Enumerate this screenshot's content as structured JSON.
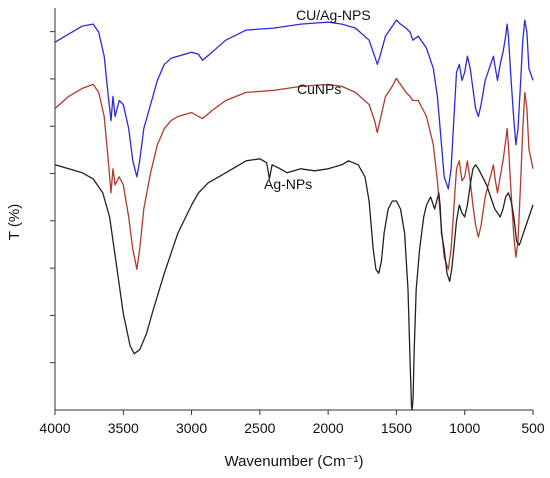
{
  "chart_data": {
    "type": "line",
    "xlabel": "Wavenumber (Cm⁻¹)",
    "ylabel": "T (%)",
    "xlim": [
      4000,
      500
    ],
    "x_reversed": true,
    "xticks": [
      4000,
      3500,
      3000,
      2500,
      2000,
      1500,
      1000,
      500
    ],
    "yticks_unlabeled": 8,
    "ylim": [
      0,
      100
    ],
    "grid": false,
    "series": [
      {
        "name": "CU/Ag-NPS",
        "color": "#2a2ad8",
        "points": [
          [
            4000,
            91.5
          ],
          [
            3900,
            93.5
          ],
          [
            3800,
            95.5
          ],
          [
            3720,
            96
          ],
          [
            3680,
            94
          ],
          [
            3640,
            88
          ],
          [
            3610,
            78
          ],
          [
            3590,
            72
          ],
          [
            3575,
            78
          ],
          [
            3560,
            73
          ],
          [
            3530,
            77
          ],
          [
            3500,
            76
          ],
          [
            3460,
            70
          ],
          [
            3430,
            62
          ],
          [
            3400,
            58
          ],
          [
            3380,
            62
          ],
          [
            3350,
            70
          ],
          [
            3300,
            76
          ],
          [
            3250,
            82
          ],
          [
            3200,
            86
          ],
          [
            3150,
            87.5
          ],
          [
            3100,
            88
          ],
          [
            3000,
            89
          ],
          [
            2950,
            88.5
          ],
          [
            2920,
            87
          ],
          [
            2850,
            89
          ],
          [
            2750,
            92
          ],
          [
            2600,
            94.5
          ],
          [
            2400,
            95
          ],
          [
            2200,
            96
          ],
          [
            2000,
            96.5
          ],
          [
            1900,
            96
          ],
          [
            1800,
            95
          ],
          [
            1700,
            92
          ],
          [
            1660,
            88
          ],
          [
            1640,
            86
          ],
          [
            1620,
            88
          ],
          [
            1580,
            93
          ],
          [
            1540,
            95
          ],
          [
            1500,
            97
          ],
          [
            1470,
            96
          ],
          [
            1430,
            95
          ],
          [
            1400,
            94
          ],
          [
            1380,
            92
          ],
          [
            1340,
            93
          ],
          [
            1280,
            90
          ],
          [
            1230,
            85
          ],
          [
            1200,
            78
          ],
          [
            1170,
            66
          ],
          [
            1150,
            58
          ],
          [
            1120,
            55
          ],
          [
            1100,
            60
          ],
          [
            1080,
            72
          ],
          [
            1060,
            84
          ],
          [
            1040,
            86
          ],
          [
            1020,
            82
          ],
          [
            1000,
            84
          ],
          [
            980,
            88
          ],
          [
            960,
            85
          ],
          [
            940,
            80
          ],
          [
            920,
            75
          ],
          [
            900,
            73
          ],
          [
            880,
            76
          ],
          [
            850,
            82
          ],
          [
            820,
            85
          ],
          [
            790,
            88
          ],
          [
            775,
            85
          ],
          [
            760,
            82
          ],
          [
            740,
            86
          ],
          [
            720,
            89
          ],
          [
            700,
            93
          ],
          [
            690,
            96
          ],
          [
            680,
            93
          ],
          [
            660,
            82
          ],
          [
            640,
            72
          ],
          [
            625,
            66
          ],
          [
            610,
            70
          ],
          [
            590,
            82
          ],
          [
            575,
            92
          ],
          [
            560,
            97
          ],
          [
            545,
            94
          ],
          [
            530,
            85
          ],
          [
            500,
            82
          ]
        ]
      },
      {
        "name": "CuNPs",
        "color": "#b03a2e",
        "points": [
          [
            4000,
            75
          ],
          [
            3900,
            78
          ],
          [
            3800,
            80
          ],
          [
            3720,
            81
          ],
          [
            3680,
            79
          ],
          [
            3640,
            73
          ],
          [
            3610,
            62
          ],
          [
            3590,
            54
          ],
          [
            3575,
            60
          ],
          [
            3560,
            56
          ],
          [
            3530,
            58
          ],
          [
            3500,
            56
          ],
          [
            3460,
            48
          ],
          [
            3430,
            40
          ],
          [
            3400,
            35
          ],
          [
            3380,
            40
          ],
          [
            3350,
            50
          ],
          [
            3300,
            59
          ],
          [
            3250,
            66
          ],
          [
            3200,
            70
          ],
          [
            3150,
            72
          ],
          [
            3100,
            73
          ],
          [
            3000,
            74
          ],
          [
            2950,
            73
          ],
          [
            2920,
            72.5
          ],
          [
            2850,
            74.5
          ],
          [
            2750,
            77
          ],
          [
            2600,
            79
          ],
          [
            2400,
            79.5
          ],
          [
            2200,
            80.5
          ],
          [
            2000,
            81
          ],
          [
            1900,
            80.5
          ],
          [
            1800,
            79
          ],
          [
            1700,
            76
          ],
          [
            1660,
            72
          ],
          [
            1640,
            69
          ],
          [
            1620,
            72
          ],
          [
            1580,
            78
          ],
          [
            1540,
            80
          ],
          [
            1500,
            82.5
          ],
          [
            1470,
            81
          ],
          [
            1430,
            79
          ],
          [
            1400,
            78
          ],
          [
            1380,
            77
          ],
          [
            1340,
            77
          ],
          [
            1280,
            73
          ],
          [
            1230,
            66
          ],
          [
            1200,
            57
          ],
          [
            1170,
            45
          ],
          [
            1150,
            38
          ],
          [
            1120,
            35
          ],
          [
            1100,
            40
          ],
          [
            1080,
            50
          ],
          [
            1060,
            60
          ],
          [
            1040,
            62
          ],
          [
            1020,
            57
          ],
          [
            1000,
            58
          ],
          [
            980,
            62
          ],
          [
            960,
            57
          ],
          [
            940,
            51
          ],
          [
            920,
            46
          ],
          [
            900,
            43
          ],
          [
            880,
            46
          ],
          [
            850,
            53
          ],
          [
            820,
            57
          ],
          [
            790,
            61
          ],
          [
            775,
            57
          ],
          [
            760,
            54
          ],
          [
            740,
            58
          ],
          [
            720,
            62
          ],
          [
            700,
            67
          ],
          [
            690,
            70
          ],
          [
            680,
            66
          ],
          [
            660,
            54
          ],
          [
            640,
            43
          ],
          [
            625,
            38
          ],
          [
            610,
            42
          ],
          [
            590,
            57
          ],
          [
            575,
            70
          ],
          [
            560,
            79
          ],
          [
            545,
            75
          ],
          [
            530,
            65
          ],
          [
            500,
            60
          ]
        ]
      },
      {
        "name": "Ag-NPs",
        "color": "#222222",
        "points": [
          [
            4000,
            61
          ],
          [
            3900,
            60
          ],
          [
            3800,
            59
          ],
          [
            3720,
            57.5
          ],
          [
            3650,
            54
          ],
          [
            3600,
            48
          ],
          [
            3550,
            36
          ],
          [
            3500,
            24
          ],
          [
            3450,
            16
          ],
          [
            3420,
            14
          ],
          [
            3380,
            15
          ],
          [
            3330,
            19
          ],
          [
            3280,
            25
          ],
          [
            3200,
            34
          ],
          [
            3100,
            44
          ],
          [
            3000,
            51
          ],
          [
            2950,
            54
          ],
          [
            2920,
            55
          ],
          [
            2880,
            56.5
          ],
          [
            2800,
            58
          ],
          [
            2700,
            60
          ],
          [
            2600,
            62
          ],
          [
            2500,
            62.5
          ],
          [
            2450,
            61.5
          ],
          [
            2430,
            57.5
          ],
          [
            2410,
            61
          ],
          [
            2350,
            60
          ],
          [
            2300,
            59
          ],
          [
            2200,
            60
          ],
          [
            2100,
            59.5
          ],
          [
            2000,
            60
          ],
          [
            1900,
            61
          ],
          [
            1850,
            62
          ],
          [
            1780,
            61
          ],
          [
            1730,
            58
          ],
          [
            1700,
            52
          ],
          [
            1670,
            40
          ],
          [
            1650,
            35
          ],
          [
            1630,
            34
          ],
          [
            1610,
            37
          ],
          [
            1590,
            44
          ],
          [
            1560,
            50
          ],
          [
            1530,
            52
          ],
          [
            1500,
            52
          ],
          [
            1470,
            50
          ],
          [
            1440,
            44
          ],
          [
            1415,
            30
          ],
          [
            1400,
            12
          ],
          [
            1390,
            1
          ],
          [
            1385,
            0
          ],
          [
            1378,
            3
          ],
          [
            1370,
            15
          ],
          [
            1355,
            30
          ],
          [
            1330,
            40
          ],
          [
            1300,
            48
          ],
          [
            1280,
            51
          ],
          [
            1250,
            53
          ],
          [
            1220,
            50
          ],
          [
            1190,
            54
          ],
          [
            1180,
            51
          ],
          [
            1170,
            44
          ],
          [
            1150,
            40
          ],
          [
            1130,
            34
          ],
          [
            1110,
            32
          ],
          [
            1095,
            35
          ],
          [
            1080,
            40
          ],
          [
            1060,
            47
          ],
          [
            1040,
            51
          ],
          [
            1020,
            49
          ],
          [
            1000,
            48
          ],
          [
            980,
            51
          ],
          [
            960,
            56
          ],
          [
            940,
            60
          ],
          [
            920,
            61
          ],
          [
            900,
            60
          ],
          [
            870,
            58
          ],
          [
            840,
            56
          ],
          [
            800,
            52
          ],
          [
            780,
            50
          ],
          [
            760,
            49
          ],
          [
            740,
            48
          ],
          [
            720,
            50
          ],
          [
            700,
            53
          ],
          [
            680,
            54
          ],
          [
            660,
            52
          ],
          [
            640,
            48
          ],
          [
            620,
            42
          ],
          [
            600,
            41
          ],
          [
            580,
            43
          ],
          [
            560,
            45
          ],
          [
            530,
            48
          ],
          [
            500,
            51
          ]
        ]
      }
    ]
  }
}
